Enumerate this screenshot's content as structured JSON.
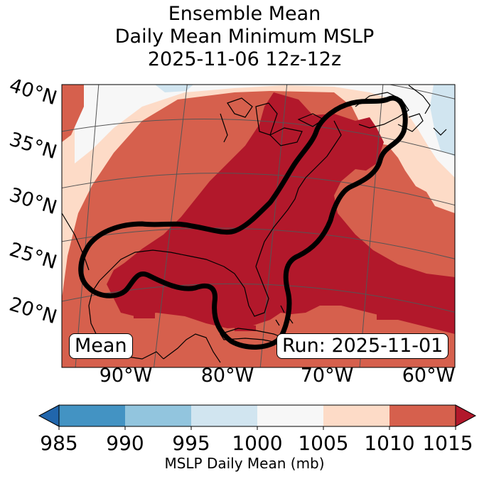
{
  "title": {
    "line1": "Ensemble Mean",
    "line2": "Daily Mean Minimum MSLP",
    "line3": "2025-11-06 12z-12z"
  },
  "map": {
    "lat_labels": [
      "40°N",
      "35°N",
      "30°N",
      "25°N",
      "20°N"
    ],
    "lon_labels": [
      "90°W",
      "80°W",
      "70°W",
      "60°W"
    ],
    "mean_box": "Mean",
    "run_box": "Run: 2025-11-01",
    "fill_colors": {
      "c995_1000": "#d1e5f0",
      "c1000_1005": "#f7f7f7",
      "c1005_1010": "#fddbc7",
      "c1010_1015": "#d6604d",
      "c1015_plus": "#b2182b"
    },
    "contour_color": "#000000"
  },
  "colorbar": {
    "ticks": [
      "985",
      "990",
      "995",
      "1000",
      "1005",
      "1010",
      "1015"
    ],
    "colors": [
      "#2166ac",
      "#4393c3",
      "#92c5de",
      "#d1e5f0",
      "#f7f7f7",
      "#fddbc7",
      "#d6604d",
      "#b2182b"
    ],
    "label": "MSLP Daily Mean (mb)"
  }
}
